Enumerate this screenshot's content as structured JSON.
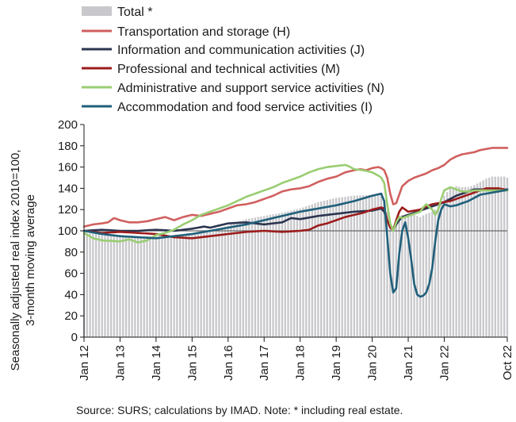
{
  "chart_data": {
    "type": "line",
    "ylabel_line1": "Seasonally adjusted real index 2010=100,",
    "ylabel_line2": "3-month moving average",
    "ylim": [
      0,
      200
    ],
    "ytick_step": 20,
    "grid": false,
    "legend_position": "top-left",
    "x_tick_labels": [
      "Jan 12",
      "Jan 13",
      "Jan 14",
      "Jan 15",
      "Jan 16",
      "Jan 17",
      "Jan 18",
      "Jan 19",
      "Jan 20",
      "Jan 21",
      "Jan 22",
      "Oct 22"
    ],
    "x_start": "Jan 12",
    "x_end": "Oct 22",
    "source": "Source:  SURS; calculations by IMAD. Note: * including real estate.",
    "reference_line": 100,
    "bar_series": {
      "name": "Total *",
      "color": "#c8c8cc",
      "anchors": [
        [
          0,
          98
        ],
        [
          6,
          97
        ],
        [
          12,
          96
        ],
        [
          18,
          95
        ],
        [
          24,
          95
        ],
        [
          30,
          96
        ],
        [
          36,
          98
        ],
        [
          42,
          100
        ],
        [
          48,
          105
        ],
        [
          54,
          111
        ],
        [
          60,
          114
        ],
        [
          66,
          117
        ],
        [
          72,
          121
        ],
        [
          78,
          127
        ],
        [
          84,
          131
        ],
        [
          90,
          133
        ],
        [
          96,
          134
        ],
        [
          99,
          133
        ],
        [
          100,
          128
        ],
        [
          101,
          118
        ],
        [
          102,
          106
        ],
        [
          103,
          103
        ],
        [
          104,
          107
        ],
        [
          105,
          112
        ],
        [
          106,
          115
        ],
        [
          108,
          116
        ],
        [
          110,
          115
        ],
        [
          112,
          113
        ],
        [
          114,
          116
        ],
        [
          116,
          118
        ],
        [
          117,
          120
        ],
        [
          118,
          123
        ],
        [
          119,
          127
        ],
        [
          120,
          133
        ],
        [
          122,
          140
        ],
        [
          124,
          142
        ],
        [
          126,
          141
        ],
        [
          128,
          141
        ],
        [
          130,
          143
        ],
        [
          132,
          146
        ],
        [
          134,
          149
        ],
        [
          136,
          151
        ],
        [
          138,
          151
        ],
        [
          140,
          151
        ],
        [
          141,
          150
        ]
      ]
    },
    "series": [
      {
        "name": "Transportation and storage (H)",
        "color": "#d0605f",
        "anchors": [
          [
            0,
            104
          ],
          [
            3,
            106
          ],
          [
            6,
            107
          ],
          [
            8,
            108
          ],
          [
            10,
            112
          ],
          [
            12,
            110
          ],
          [
            15,
            108
          ],
          [
            18,
            108
          ],
          [
            21,
            109
          ],
          [
            24,
            111
          ],
          [
            27,
            113
          ],
          [
            30,
            110
          ],
          [
            33,
            113
          ],
          [
            36,
            115
          ],
          [
            39,
            114
          ],
          [
            42,
            116
          ],
          [
            45,
            118
          ],
          [
            48,
            121
          ],
          [
            51,
            124
          ],
          [
            54,
            125
          ],
          [
            57,
            127
          ],
          [
            60,
            130
          ],
          [
            63,
            133
          ],
          [
            66,
            137
          ],
          [
            69,
            139
          ],
          [
            72,
            140
          ],
          [
            75,
            142
          ],
          [
            78,
            146
          ],
          [
            81,
            149
          ],
          [
            84,
            151
          ],
          [
            87,
            155
          ],
          [
            90,
            157
          ],
          [
            92,
            158
          ],
          [
            94,
            157
          ],
          [
            96,
            159
          ],
          [
            98,
            160
          ],
          [
            99,
            159
          ],
          [
            100,
            157
          ],
          [
            101,
            150
          ],
          [
            102,
            135
          ],
          [
            103,
            125
          ],
          [
            104,
            126
          ],
          [
            105,
            134
          ],
          [
            106,
            142
          ],
          [
            108,
            147
          ],
          [
            110,
            150
          ],
          [
            112,
            152
          ],
          [
            114,
            154
          ],
          [
            116,
            157
          ],
          [
            118,
            159
          ],
          [
            120,
            162
          ],
          [
            122,
            167
          ],
          [
            124,
            170
          ],
          [
            126,
            172
          ],
          [
            128,
            173
          ],
          [
            130,
            174
          ],
          [
            132,
            176
          ],
          [
            134,
            177
          ],
          [
            136,
            178
          ],
          [
            138,
            178
          ],
          [
            140,
            178
          ],
          [
            141,
            178
          ]
        ]
      },
      {
        "name": "Information and communication activities (J)",
        "color": "#2b3550",
        "anchors": [
          [
            0,
            100
          ],
          [
            6,
            101
          ],
          [
            12,
            100
          ],
          [
            18,
            100
          ],
          [
            24,
            101
          ],
          [
            30,
            100
          ],
          [
            36,
            102
          ],
          [
            40,
            104
          ],
          [
            42,
            103
          ],
          [
            48,
            107
          ],
          [
            54,
            108
          ],
          [
            60,
            106
          ],
          [
            66,
            108
          ],
          [
            69,
            112
          ],
          [
            72,
            111
          ],
          [
            78,
            114
          ],
          [
            84,
            116
          ],
          [
            90,
            118
          ],
          [
            96,
            119
          ],
          [
            99,
            121
          ],
          [
            100,
            118
          ],
          [
            101,
            110
          ],
          [
            102,
            104
          ],
          [
            103,
            101
          ],
          [
            104,
            106
          ],
          [
            105,
            110
          ],
          [
            106,
            113
          ],
          [
            108,
            115
          ],
          [
            110,
            117
          ],
          [
            112,
            119
          ],
          [
            114,
            121
          ],
          [
            116,
            123
          ],
          [
            118,
            125
          ],
          [
            120,
            127
          ],
          [
            122,
            130
          ],
          [
            124,
            133
          ],
          [
            126,
            135
          ],
          [
            128,
            137
          ],
          [
            130,
            139
          ],
          [
            132,
            139
          ],
          [
            134,
            139
          ],
          [
            136,
            139
          ],
          [
            138,
            139
          ],
          [
            140,
            138
          ],
          [
            141,
            138
          ]
        ]
      },
      {
        "name": "Professional and technical activities (M)",
        "color": "#9c1c1c",
        "anchors": [
          [
            0,
            100
          ],
          [
            6,
            98
          ],
          [
            12,
            99
          ],
          [
            18,
            98
          ],
          [
            24,
            97
          ],
          [
            30,
            94
          ],
          [
            36,
            93
          ],
          [
            42,
            95
          ],
          [
            48,
            97
          ],
          [
            54,
            99
          ],
          [
            60,
            100
          ],
          [
            66,
            99
          ],
          [
            72,
            100
          ],
          [
            75,
            101
          ],
          [
            78,
            105
          ],
          [
            81,
            107
          ],
          [
            84,
            110
          ],
          [
            87,
            113
          ],
          [
            90,
            115
          ],
          [
            93,
            117
          ],
          [
            96,
            120
          ],
          [
            99,
            122
          ],
          [
            100,
            121
          ],
          [
            101,
            110
          ],
          [
            102,
            103
          ],
          [
            103,
            101
          ],
          [
            104,
            110
          ],
          [
            105,
            118
          ],
          [
            106,
            122
          ],
          [
            108,
            118
          ],
          [
            110,
            119
          ],
          [
            112,
            120
          ],
          [
            114,
            123
          ],
          [
            116,
            125
          ],
          [
            118,
            126
          ],
          [
            120,
            127
          ],
          [
            122,
            128
          ],
          [
            124,
            130
          ],
          [
            126,
            132
          ],
          [
            128,
            134
          ],
          [
            130,
            136
          ],
          [
            132,
            138
          ],
          [
            134,
            140
          ],
          [
            136,
            140
          ],
          [
            138,
            140
          ],
          [
            140,
            139
          ],
          [
            141,
            139
          ]
        ]
      },
      {
        "name": "Administrative and support service activities (N)",
        "color": "#9acd72",
        "anchors": [
          [
            0,
            98
          ],
          [
            3,
            93
          ],
          [
            6,
            91
          ],
          [
            12,
            90
          ],
          [
            15,
            92
          ],
          [
            18,
            89
          ],
          [
            21,
            91
          ],
          [
            24,
            96
          ],
          [
            27,
            98
          ],
          [
            30,
            101
          ],
          [
            33,
            106
          ],
          [
            36,
            110
          ],
          [
            39,
            115
          ],
          [
            42,
            118
          ],
          [
            45,
            121
          ],
          [
            48,
            124
          ],
          [
            51,
            128
          ],
          [
            54,
            132
          ],
          [
            57,
            135
          ],
          [
            60,
            138
          ],
          [
            63,
            141
          ],
          [
            66,
            145
          ],
          [
            69,
            148
          ],
          [
            72,
            151
          ],
          [
            75,
            155
          ],
          [
            78,
            158
          ],
          [
            81,
            160
          ],
          [
            84,
            161
          ],
          [
            87,
            162
          ],
          [
            88,
            161
          ],
          [
            90,
            158
          ],
          [
            93,
            157
          ],
          [
            96,
            155
          ],
          [
            98,
            152
          ],
          [
            99,
            150
          ],
          [
            100,
            145
          ],
          [
            101,
            125
          ],
          [
            102,
            107
          ],
          [
            103,
            100
          ],
          [
            104,
            108
          ],
          [
            105,
            113
          ],
          [
            106,
            112
          ],
          [
            108,
            114
          ],
          [
            110,
            116
          ],
          [
            112,
            118
          ],
          [
            113,
            122
          ],
          [
            114,
            125
          ],
          [
            116,
            120
          ],
          [
            117,
            115
          ],
          [
            118,
            120
          ],
          [
            119,
            130
          ],
          [
            120,
            138
          ],
          [
            122,
            141
          ],
          [
            124,
            139
          ],
          [
            126,
            137
          ],
          [
            128,
            137
          ],
          [
            130,
            138
          ],
          [
            132,
            138
          ],
          [
            134,
            138
          ],
          [
            136,
            138
          ],
          [
            138,
            138
          ],
          [
            140,
            138
          ],
          [
            141,
            138
          ]
        ]
      },
      {
        "name": "Accommodation and food service activities (I)",
        "color": "#1f5f7a",
        "anchors": [
          [
            0,
            100
          ],
          [
            6,
            97
          ],
          [
            12,
            95
          ],
          [
            18,
            94
          ],
          [
            24,
            93
          ],
          [
            30,
            95
          ],
          [
            36,
            97
          ],
          [
            42,
            100
          ],
          [
            48,
            103
          ],
          [
            54,
            106
          ],
          [
            60,
            110
          ],
          [
            66,
            114
          ],
          [
            72,
            118
          ],
          [
            78,
            121
          ],
          [
            84,
            124
          ],
          [
            90,
            128
          ],
          [
            96,
            133
          ],
          [
            99,
            135
          ],
          [
            100,
            128
          ],
          [
            101,
            95
          ],
          [
            102,
            60
          ],
          [
            103,
            42
          ],
          [
            104,
            46
          ],
          [
            105,
            78
          ],
          [
            106,
            100
          ],
          [
            107,
            108
          ],
          [
            108,
            93
          ],
          [
            109,
            73
          ],
          [
            110,
            50
          ],
          [
            111,
            40
          ],
          [
            112,
            38
          ],
          [
            113,
            39
          ],
          [
            114,
            42
          ],
          [
            115,
            50
          ],
          [
            116,
            65
          ],
          [
            117,
            90
          ],
          [
            118,
            110
          ],
          [
            119,
            120
          ],
          [
            120,
            125
          ],
          [
            122,
            123
          ],
          [
            124,
            124
          ],
          [
            126,
            126
          ],
          [
            128,
            128
          ],
          [
            130,
            131
          ],
          [
            132,
            134
          ],
          [
            134,
            135
          ],
          [
            136,
            136
          ],
          [
            138,
            137
          ],
          [
            140,
            138
          ],
          [
            141,
            139
          ]
        ]
      }
    ]
  }
}
